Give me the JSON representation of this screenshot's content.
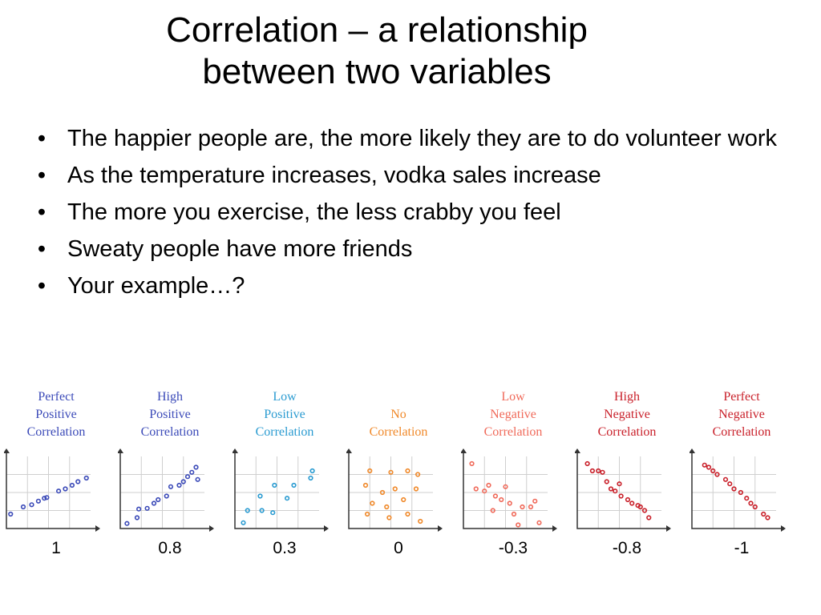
{
  "slide": {
    "title_lines": [
      "Correlation – a relationship",
      "between two variables"
    ],
    "bullets": [
      "The happier people are, the more likely they are to do volunteer work",
      "As the temperature increases, vodka sales increase",
      "The more you exercise, the less crabby you feel",
      "Sweaty people have more friends",
      "Your example…?"
    ]
  },
  "chart_data": [
    {
      "type": "scatter",
      "label": [
        "Perfect",
        "Positive",
        "Correlation"
      ],
      "correlation": "1",
      "color": "#3b4ab8",
      "points": [
        [
          0.05,
          0.2
        ],
        [
          0.2,
          0.3
        ],
        [
          0.3,
          0.33
        ],
        [
          0.38,
          0.38
        ],
        [
          0.45,
          0.42
        ],
        [
          0.48,
          0.43
        ],
        [
          0.62,
          0.52
        ],
        [
          0.7,
          0.55
        ],
        [
          0.78,
          0.6
        ],
        [
          0.85,
          0.65
        ],
        [
          0.95,
          0.7
        ]
      ]
    },
    {
      "type": "scatter",
      "label": [
        "High",
        "Positive",
        "Correlation"
      ],
      "correlation": "0.8",
      "color": "#3b4ab8",
      "points": [
        [
          0.08,
          0.07
        ],
        [
          0.2,
          0.15
        ],
        [
          0.22,
          0.27
        ],
        [
          0.32,
          0.28
        ],
        [
          0.4,
          0.35
        ],
        [
          0.45,
          0.4
        ],
        [
          0.55,
          0.45
        ],
        [
          0.6,
          0.58
        ],
        [
          0.7,
          0.6
        ],
        [
          0.75,
          0.65
        ],
        [
          0.8,
          0.72
        ],
        [
          0.85,
          0.78
        ],
        [
          0.9,
          0.85
        ],
        [
          0.92,
          0.68
        ]
      ]
    },
    {
      "type": "scatter",
      "label": [
        "Low",
        "Positive",
        "Correlation"
      ],
      "correlation": "0.3",
      "color": "#2a9bd1",
      "points": [
        [
          0.1,
          0.08
        ],
        [
          0.15,
          0.25
        ],
        [
          0.3,
          0.45
        ],
        [
          0.32,
          0.25
        ],
        [
          0.45,
          0.22
        ],
        [
          0.47,
          0.6
        ],
        [
          0.62,
          0.42
        ],
        [
          0.7,
          0.6
        ],
        [
          0.9,
          0.7
        ],
        [
          0.92,
          0.8
        ]
      ]
    },
    {
      "type": "scatter",
      "label": [
        "No",
        "Correlation"
      ],
      "correlation": "0",
      "color": "#f0892a",
      "points": [
        [
          0.2,
          0.6
        ],
        [
          0.22,
          0.2
        ],
        [
          0.25,
          0.8
        ],
        [
          0.28,
          0.35
        ],
        [
          0.4,
          0.5
        ],
        [
          0.45,
          0.3
        ],
        [
          0.48,
          0.15
        ],
        [
          0.5,
          0.78
        ],
        [
          0.55,
          0.55
        ],
        [
          0.65,
          0.4
        ],
        [
          0.7,
          0.2
        ],
        [
          0.7,
          0.8
        ],
        [
          0.82,
          0.75
        ],
        [
          0.8,
          0.55
        ],
        [
          0.85,
          0.1
        ]
      ]
    },
    {
      "type": "scatter",
      "label": [
        "Low",
        "Negative",
        "Correlation"
      ],
      "correlation": "-0.3",
      "color": "#f06a5a",
      "points": [
        [
          0.1,
          0.9
        ],
        [
          0.15,
          0.55
        ],
        [
          0.25,
          0.52
        ],
        [
          0.3,
          0.6
        ],
        [
          0.35,
          0.25
        ],
        [
          0.38,
          0.45
        ],
        [
          0.45,
          0.4
        ],
        [
          0.5,
          0.58
        ],
        [
          0.55,
          0.35
        ],
        [
          0.6,
          0.2
        ],
        [
          0.65,
          0.05
        ],
        [
          0.7,
          0.3
        ],
        [
          0.8,
          0.3
        ],
        [
          0.85,
          0.38
        ],
        [
          0.9,
          0.08
        ]
      ]
    },
    {
      "type": "scatter",
      "label": [
        "High",
        "Negative",
        "Correlation"
      ],
      "correlation": "-0.8",
      "color": "#c9202a",
      "points": [
        [
          0.12,
          0.9
        ],
        [
          0.18,
          0.8
        ],
        [
          0.25,
          0.8
        ],
        [
          0.3,
          0.78
        ],
        [
          0.35,
          0.65
        ],
        [
          0.4,
          0.55
        ],
        [
          0.45,
          0.52
        ],
        [
          0.5,
          0.62
        ],
        [
          0.52,
          0.45
        ],
        [
          0.6,
          0.4
        ],
        [
          0.65,
          0.35
        ],
        [
          0.72,
          0.32
        ],
        [
          0.75,
          0.3
        ],
        [
          0.8,
          0.25
        ],
        [
          0.85,
          0.15
        ]
      ]
    },
    {
      "type": "scatter",
      "label": [
        "Perfect",
        "Negative",
        "Correlation"
      ],
      "correlation": "-1",
      "color": "#c9202a",
      "points": [
        [
          0.15,
          0.88
        ],
        [
          0.2,
          0.85
        ],
        [
          0.25,
          0.8
        ],
        [
          0.3,
          0.75
        ],
        [
          0.4,
          0.68
        ],
        [
          0.45,
          0.62
        ],
        [
          0.5,
          0.55
        ],
        [
          0.58,
          0.5
        ],
        [
          0.65,
          0.42
        ],
        [
          0.7,
          0.35
        ],
        [
          0.75,
          0.3
        ],
        [
          0.85,
          0.2
        ],
        [
          0.9,
          0.15
        ]
      ]
    }
  ]
}
